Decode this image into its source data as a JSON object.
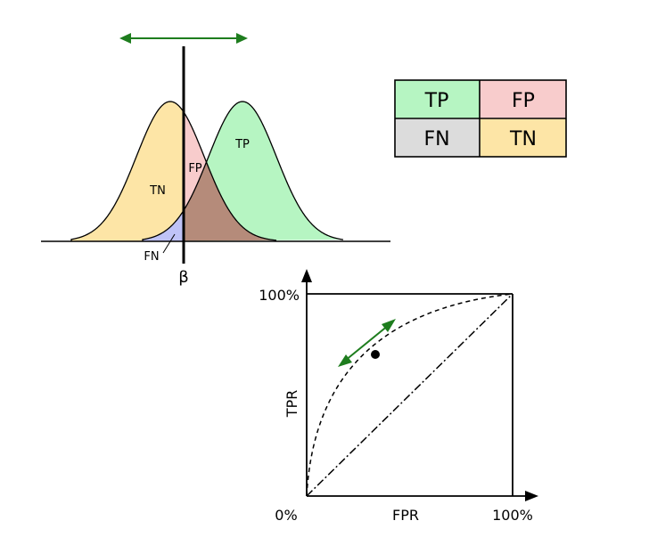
{
  "distribution": {
    "labels": {
      "tn": "TN",
      "fp": "FP",
      "tp": "TP",
      "fn": "FN",
      "threshold": "β"
    }
  },
  "confusion_matrix": {
    "cells": [
      {
        "label": "TP",
        "color": "#b6f5c2"
      },
      {
        "label": "FP",
        "color": "#f8cccc"
      },
      {
        "label": "FN",
        "color": "#dcdcdc"
      },
      {
        "label": "TN",
        "color": "#fde5a6"
      }
    ]
  },
  "roc": {
    "y_max_label": "100%",
    "origin_label": "0%",
    "x_max_label": "100%",
    "xlabel": "FPR",
    "ylabel": "TPR"
  },
  "colors": {
    "tn_fill": "#fde5a6",
    "tp_fill": "#b6f5c2",
    "fp_fill": "#f8cccc",
    "fn_fill": "#bfc3f7",
    "overlap_fill": "#b58b7a",
    "arrow": "#1e7d1e"
  }
}
